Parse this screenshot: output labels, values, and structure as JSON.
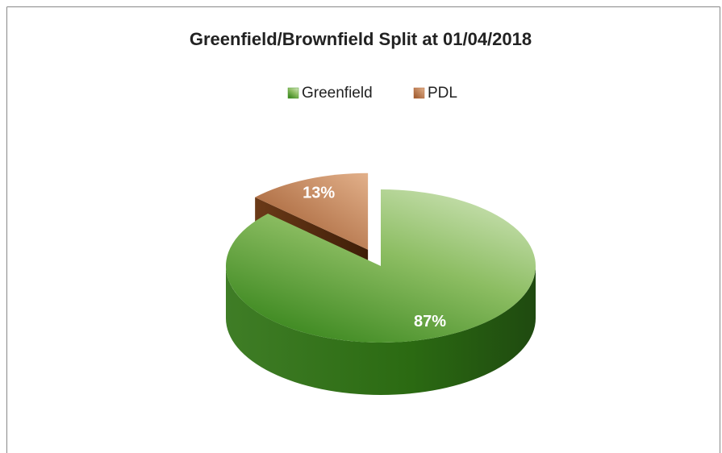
{
  "chart_data": {
    "type": "pie3d",
    "title": "Greenfield/Brownfield Split at 01/04/2018",
    "categories": [
      "Greenfield",
      "PDL"
    ],
    "values": [
      87,
      13
    ],
    "value_labels": [
      "87%",
      "13%"
    ],
    "colors": [
      "#4e9a2e",
      "#b5693a"
    ],
    "legend": "top"
  }
}
